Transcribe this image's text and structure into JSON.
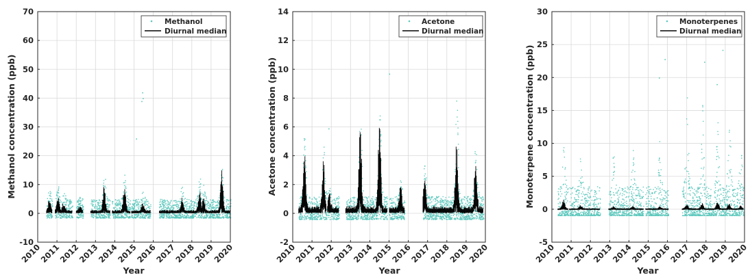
{
  "colors": {
    "scatter": "#5ec8bd",
    "median": "#000000",
    "axes": "#262626",
    "grid": "#d9d9d9"
  },
  "chart_data": [
    {
      "type": "scatter",
      "xlabel": "Year",
      "ylabel": "Methanol concentration (ppb)",
      "xlim": [
        2010,
        2020
      ],
      "ylim": [
        -10,
        70
      ],
      "x_ticks": [
        "2010",
        "2011",
        "2012",
        "2013",
        "2014",
        "2015",
        "2016",
        "2017",
        "2018",
        "2019",
        "2020"
      ],
      "y_ticks": [
        "-10",
        "0",
        "10",
        "20",
        "30",
        "40",
        "50",
        "60",
        "70"
      ],
      "grid": true,
      "legend_position": "top-right",
      "series": [
        {
          "name": "Methanol",
          "style": "scatter",
          "segments": [
            [
              2010.45,
              2010.75
            ],
            [
              2010.9,
              2011.8
            ],
            [
              2012.0,
              2012.35
            ],
            [
              2012.75,
              2013.75
            ],
            [
              2013.85,
              2014.8
            ],
            [
              2014.85,
              2015.85
            ],
            [
              2016.3,
              2016.7
            ],
            [
              2016.7,
              2020.0
            ]
          ],
          "peaks": [
            [
              2010.6,
              9
            ],
            [
              2011.05,
              10
            ],
            [
              2011.35,
              8
            ],
            [
              2012.2,
              6
            ],
            [
              2013.45,
              15
            ],
            [
              2014.5,
              15
            ],
            [
              2015.45,
              8
            ],
            [
              2017.5,
              11
            ],
            [
              2018.4,
              14
            ],
            [
              2018.6,
              12
            ],
            [
              2019.55,
              18
            ]
          ],
          "outliers": [
            [
              2015.1,
              26
            ],
            [
              2015.42,
              42
            ],
            [
              2015.45,
              40
            ],
            [
              2015.38,
              39
            ]
          ]
        },
        {
          "name": "Diurnal median",
          "style": "line",
          "peaks": [
            [
              2010.6,
              5
            ],
            [
              2011.05,
              6
            ],
            [
              2011.35,
              4
            ],
            [
              2012.2,
              3
            ],
            [
              2013.45,
              10
            ],
            [
              2014.5,
              10
            ],
            [
              2015.45,
              4
            ],
            [
              2017.5,
              6
            ],
            [
              2018.4,
              8
            ],
            [
              2018.6,
              7
            ],
            [
              2019.55,
              15
            ]
          ]
        }
      ]
    },
    {
      "type": "scatter",
      "xlabel": "Year",
      "ylabel": "Acetone concentration (ppb)",
      "xlim": [
        2010,
        2020
      ],
      "ylim": [
        -2,
        14
      ],
      "x_ticks": [
        "2010",
        "2011",
        "2012",
        "2013",
        "2014",
        "2015",
        "2016",
        "2017",
        "2018",
        "2019",
        "2020"
      ],
      "y_ticks": [
        "-2",
        "0",
        "2",
        "4",
        "6",
        "8",
        "10",
        "12",
        "14"
      ],
      "grid": true,
      "legend_position": "top-right",
      "series": [
        {
          "name": "Acetone",
          "style": "scatter",
          "segments": [
            [
              2010.3,
              2011.75
            ],
            [
              2011.8,
              2012.4
            ],
            [
              2012.75,
              2014.9
            ],
            [
              2015.0,
              2015.8
            ],
            [
              2016.75,
              2019.9
            ]
          ],
          "peaks": [
            [
              2010.6,
              6
            ],
            [
              2011.6,
              4.8
            ],
            [
              2011.9,
              2
            ],
            [
              2013.5,
              8
            ],
            [
              2014.5,
              8
            ],
            [
              2015.6,
              2.5
            ],
            [
              2016.85,
              3.8
            ],
            [
              2018.5,
              8.3
            ],
            [
              2019.5,
              6
            ]
          ],
          "outliers": [
            [
              2015.0,
              9.7
            ],
            [
              2011.85,
              5.9
            ]
          ]
        },
        {
          "name": "Diurnal median",
          "style": "line",
          "peaks": [
            [
              2010.6,
              4.7
            ],
            [
              2011.6,
              3.8
            ],
            [
              2011.9,
              1.5
            ],
            [
              2013.5,
              7
            ],
            [
              2014.5,
              6.6
            ],
            [
              2015.6,
              2
            ],
            [
              2016.85,
              2.5
            ],
            [
              2018.5,
              5.2
            ],
            [
              2019.5,
              4.3
            ]
          ]
        }
      ]
    },
    {
      "type": "scatter",
      "xlabel": "Year",
      "ylabel": "Monoterpene concentration (ppb)",
      "xlim": [
        2010,
        2020
      ],
      "ylim": [
        -5,
        30
      ],
      "x_ticks": [
        "2010",
        "2011",
        "2012",
        "2013",
        "2014",
        "2015",
        "2016",
        "2017",
        "2018",
        "2019",
        "2020"
      ],
      "y_ticks": [
        "-5",
        "0",
        "5",
        "10",
        "15",
        "20",
        "25",
        "30"
      ],
      "grid": true,
      "legend_position": "top-right",
      "series": [
        {
          "name": "Monoterpenes",
          "style": "scatter",
          "segments": [
            [
              2010.3,
              2010.85
            ],
            [
              2010.9,
              2012.5
            ],
            [
              2012.95,
              2014.75
            ],
            [
              2014.85,
              2016.05
            ],
            [
              2016.75,
              2019.95
            ]
          ],
          "peaks": [
            [
              2010.6,
              9.5
            ],
            [
              2011.5,
              9.5
            ],
            [
              2013.2,
              9
            ],
            [
              2014.2,
              9.5
            ],
            [
              2015.6,
              11
            ],
            [
              2017.0,
              17.5
            ],
            [
              2017.8,
              16
            ],
            [
              2018.6,
              15
            ],
            [
              2019.2,
              14
            ],
            [
              2019.8,
              10
            ]
          ],
          "outliers": [
            [
              2015.85,
              22.8
            ],
            [
              2017.9,
              22.4
            ],
            [
              2018.85,
              24.2
            ],
            [
              2015.55,
              20
            ],
            [
              2018.55,
              19
            ]
          ]
        },
        {
          "name": "Diurnal median",
          "style": "line",
          "peaks": [
            [
              2010.6,
              1.5
            ],
            [
              2011.5,
              0.7
            ],
            [
              2013.2,
              0.5
            ],
            [
              2014.2,
              0.6
            ],
            [
              2015.6,
              0.5
            ],
            [
              2017.0,
              0.9
            ],
            [
              2017.8,
              1
            ],
            [
              2018.6,
              1.3
            ],
            [
              2019.2,
              1
            ],
            [
              2019.8,
              0.6
            ]
          ]
        }
      ]
    }
  ]
}
